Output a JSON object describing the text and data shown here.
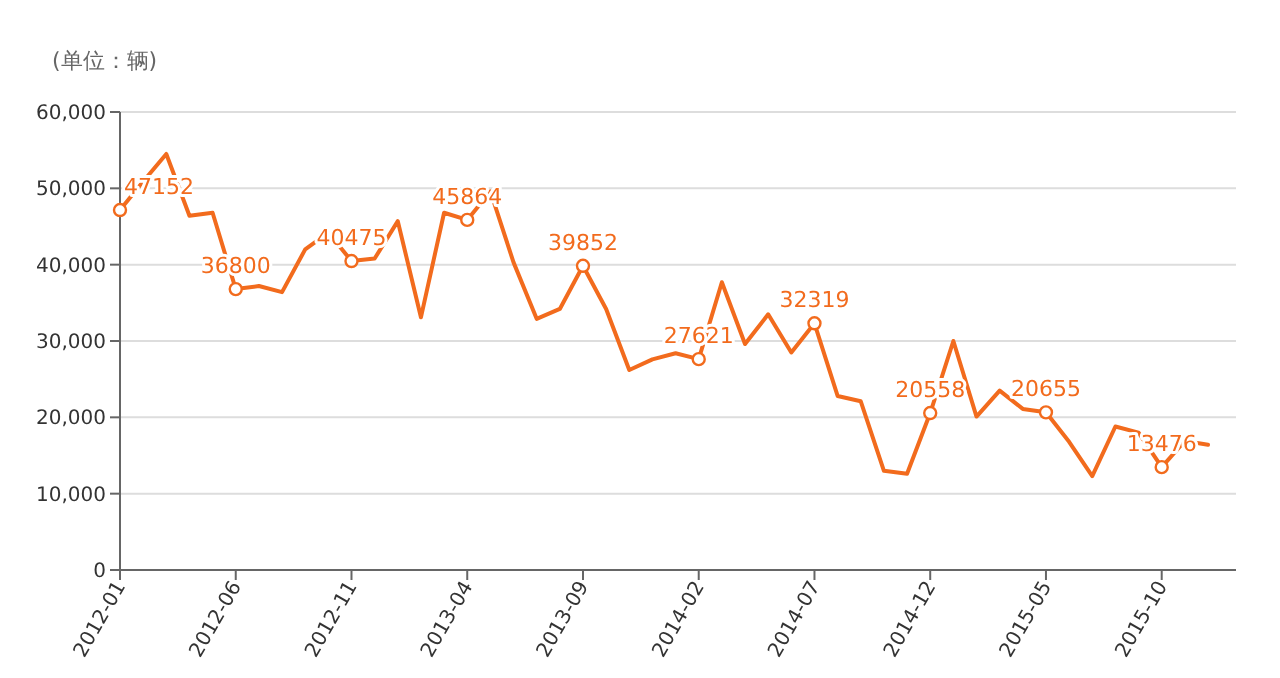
{
  "chart_data": {
    "type": "line",
    "ylabel": "(单位：辆)",
    "categories": [
      "2012-01",
      null,
      null,
      null,
      null,
      "2012-06",
      null,
      null,
      null,
      null,
      "2012-11",
      null,
      null,
      null,
      null,
      "2013-04",
      null,
      null,
      null,
      null,
      "2013-09",
      null,
      null,
      null,
      null,
      "2014-02",
      null,
      null,
      null,
      null,
      "2014-07",
      null,
      null,
      null,
      null,
      "2014-12",
      null,
      null,
      null,
      null,
      "2015-05",
      null,
      null,
      null,
      null,
      "2015-10",
      null,
      null
    ],
    "series": [
      {
        "color": "#f26b1d",
        "values": [
          47152,
          50900,
          54500,
          46400,
          46800,
          36800,
          37200,
          36400,
          42000,
          44200,
          40475,
          40800,
          45700,
          33100,
          46800,
          45864,
          49600,
          40300,
          32900,
          34200,
          39852,
          34200,
          26200,
          27600,
          28400,
          27621,
          37700,
          29600,
          33500,
          28500,
          32319,
          22800,
          22100,
          13000,
          12600,
          20558,
          30000,
          20100,
          23500,
          21100,
          20655,
          16800,
          12300,
          18800,
          18000,
          13476,
          16900,
          16400
        ],
        "value_labels": [
          "47152",
          null,
          null,
          null,
          null,
          "36800",
          null,
          null,
          null,
          null,
          "40475",
          null,
          null,
          null,
          null,
          "45864",
          null,
          null,
          null,
          null,
          "39852",
          null,
          null,
          null,
          null,
          "27621",
          null,
          null,
          null,
          null,
          "32319",
          null,
          null,
          null,
          null,
          "20558",
          null,
          null,
          null,
          null,
          "20655",
          null,
          null,
          null,
          null,
          "13476",
          null,
          null
        ]
      }
    ],
    "ylim": [
      0,
      60000
    ],
    "yticks": [
      {
        "value": 0,
        "label": "0"
      },
      {
        "value": 10000,
        "label": "10,000"
      },
      {
        "value": 20000,
        "label": "20,000"
      },
      {
        "value": 30000,
        "label": "30,000"
      },
      {
        "value": 40000,
        "label": "40,000"
      },
      {
        "value": 50000,
        "label": "50,000"
      },
      {
        "value": 60000,
        "label": "60,000"
      }
    ],
    "grid": "y",
    "line_style": "solid"
  }
}
